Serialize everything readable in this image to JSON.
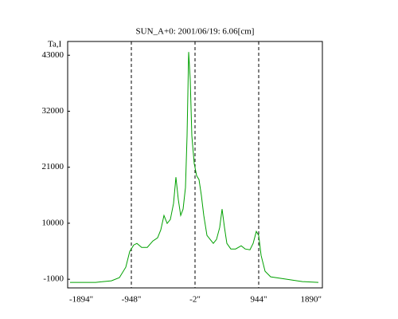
{
  "chart_data": {
    "type": "line",
    "title": "SUN_A+0: 2001/06/19: 6.06[cm]",
    "y_label": "Ta,I",
    "xlim": [
      -1894,
      1890
    ],
    "xticks": [
      {
        "value": -1894,
        "label": "-1894\""
      },
      {
        "value": -948,
        "label": "-948\""
      },
      {
        "value": -2,
        "label": "-2\""
      },
      {
        "value": 944,
        "label": "944\""
      },
      {
        "value": 1890,
        "label": "1890\""
      }
    ],
    "ylim": [
      -2700,
      45700
    ],
    "yticks": [
      -1000,
      10000,
      21000,
      32000,
      43000
    ],
    "grid": "dashed",
    "series": [
      {
        "color": "#00a000",
        "x": [
          -1859,
          -1480,
          -1244,
          -1125,
          -1031,
          -972,
          -913,
          -865,
          -794,
          -712,
          -629,
          -558,
          -511,
          -463,
          -416,
          -369,
          -321,
          -286,
          -250,
          -215,
          -179,
          -144,
          -120,
          -97,
          -73,
          -49,
          -14,
          22,
          57,
          93,
          128,
          175,
          223,
          270,
          317,
          364,
          400,
          435,
          471,
          530,
          601,
          684,
          743,
          814,
          861,
          908,
          944,
          979,
          1039,
          1121,
          1358,
          1594,
          1831
        ],
        "values": [
          -1626,
          -1626,
          -1313,
          -687,
          1349,
          4481,
          5734,
          6047,
          5264,
          5264,
          6517,
          7143,
          8709,
          11528,
          9962,
          10745,
          13877,
          19045,
          14659,
          11528,
          12780,
          17008,
          27188,
          43631,
          38150,
          27188,
          21707,
          19358,
          18575,
          15443,
          11528,
          7612,
          6829,
          6047,
          6829,
          9178,
          12780,
          9178,
          6047,
          4951,
          4951,
          5577,
          4951,
          4794,
          6047,
          8396,
          7612,
          3698,
          566,
          -530,
          -1000,
          -1470,
          -1626
        ]
      }
    ]
  }
}
